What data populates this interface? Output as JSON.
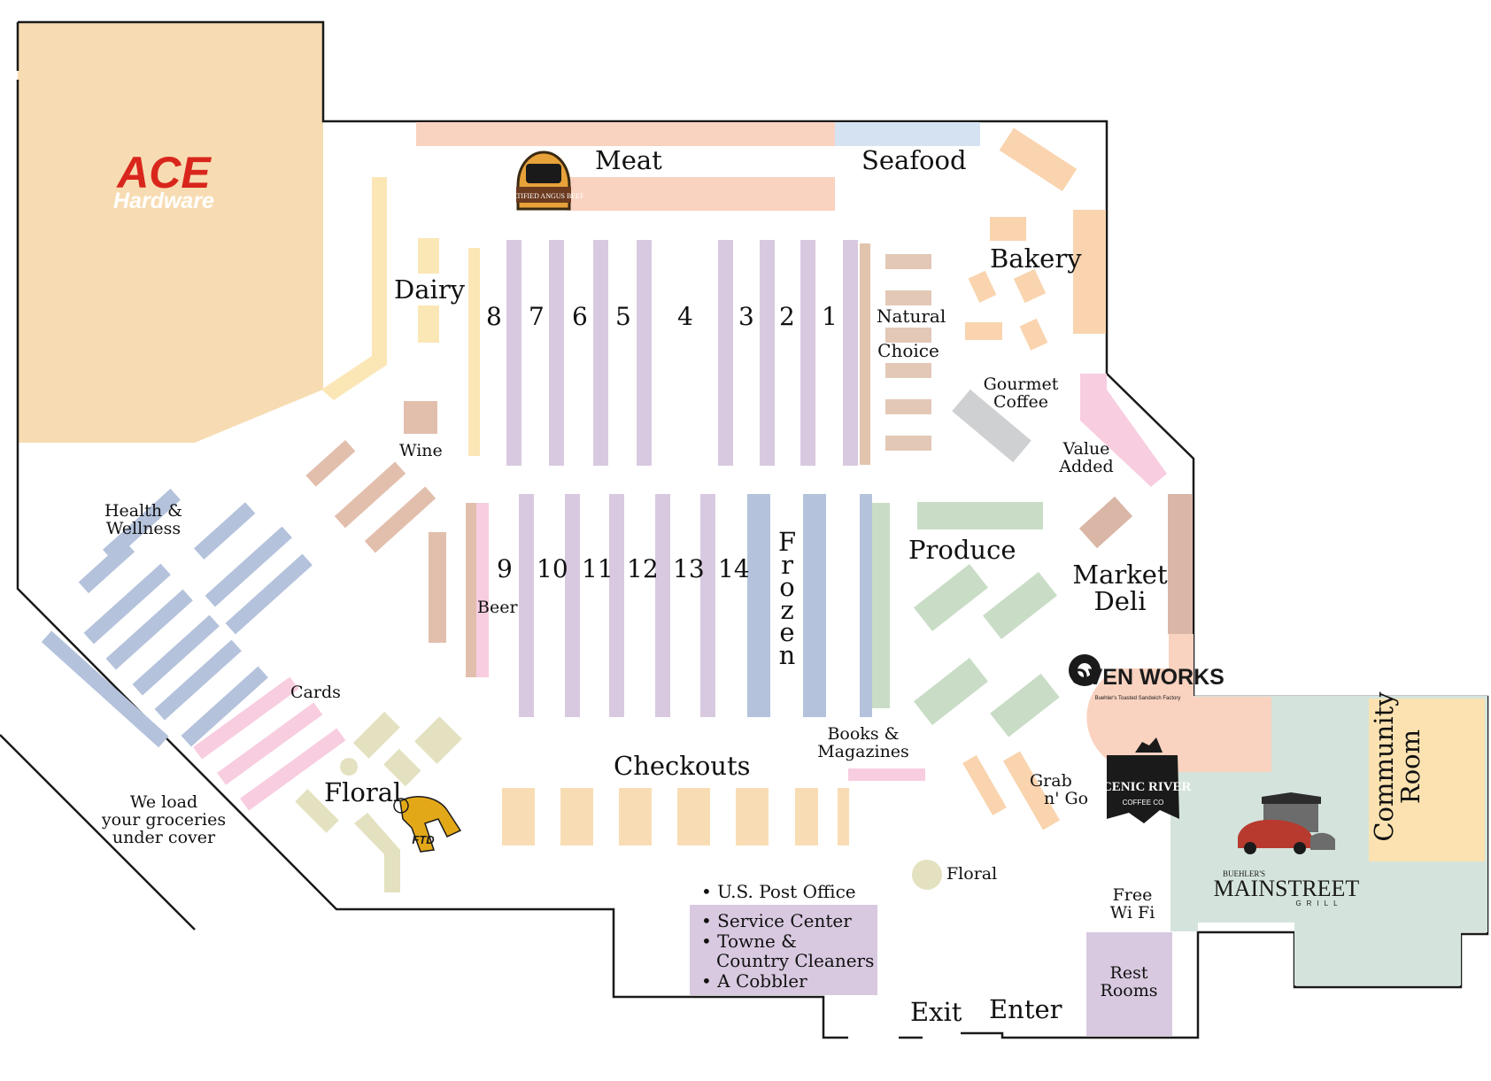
{
  "colors": {
    "ace_area": "#f7dcb3",
    "meat": "#f9d2c0",
    "seafood": "#d5e2f2",
    "grocery_aisle": "#d8c9e0",
    "frozen": "#b4c2dc",
    "dairy": "#fbe6b6",
    "wine": "#e2bfad",
    "produce": "#c9ddc6",
    "bakery": "#f9d4ae",
    "pink": "#f8cde0",
    "checkout": "#f8ddb4",
    "floral": "#e3e1bf",
    "gourmet": "#cfd0d2",
    "deli": "#d9b6a6",
    "community": "#fbe2b0",
    "mainstreet": "#d4e4dc",
    "service": "#d8c9e0",
    "outline": "#1a1a1a"
  },
  "logos": {
    "ace_brand": "ACE",
    "ace_sub": "Hardware",
    "angus_brand": "CERTIFIED ANGUS BEEF",
    "oven_brand": "OVEN WORKS",
    "oven_sub": "Buehler's Toasted Sandwich Factory",
    "scenic_brand": "SCENIC RIVER",
    "scenic_sub": "COFFEE CO",
    "ftd_brand": "FTD",
    "mainstreet_top": "BUEHLER'S",
    "mainstreet_brand": "MAINSTREET",
    "mainstreet_sub": "GRILL"
  },
  "sections": {
    "meat": "Meat",
    "seafood": "Seafood",
    "bakery": "Bakery",
    "dairy": "Dairy",
    "natural_1": "Natural",
    "natural_2": "Choice",
    "gourmet_1": "Gourmet",
    "gourmet_2": "Coffee",
    "value_1": "Value",
    "value_2": "Added",
    "wine": "Wine",
    "health_1": "Health &",
    "health_2": "Wellness",
    "beer": "Beer",
    "produce": "Produce",
    "deli_1": "Market",
    "deli_2": "Deli",
    "cards": "Cards",
    "checkouts": "Checkouts",
    "books_1": "Books &",
    "books_2": "Magazines",
    "grab_1": "Grab",
    "grab_2": "n' Go",
    "floral_main": "Floral",
    "floral_small": "Floral",
    "frozen": "Frozen",
    "community_1": "Community",
    "community_2": "Room",
    "wifi_1": "Free",
    "wifi_2": "Wi Fi",
    "rest_1": "Rest",
    "rest_2": "Rooms",
    "exit": "Exit",
    "enter": "Enter",
    "load_1": "We load",
    "load_2": "your groceries",
    "load_3": "under cover"
  },
  "aisles_top": [
    "8",
    "7",
    "6",
    "5",
    "4",
    "3",
    "2",
    "1"
  ],
  "aisles_bottom": [
    "9",
    "10",
    "11",
    "12",
    "13",
    "14"
  ],
  "services": {
    "post_office": "• U.S. Post Office",
    "service_center": "• Service Center",
    "cleaners_1": "• Towne &",
    "cleaners_2": "Country Cleaners",
    "cobbler": "• A Cobbler"
  }
}
